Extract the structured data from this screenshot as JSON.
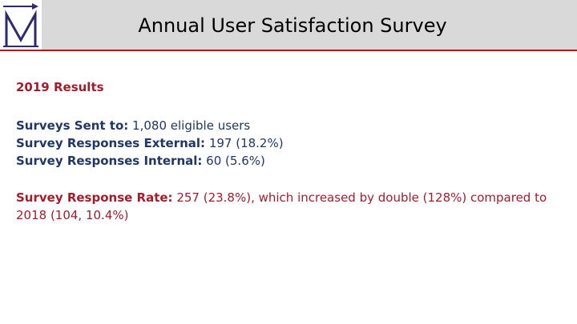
{
  "header": {
    "title": "Annual User Satisfaction Survey",
    "logo_letter": "M"
  },
  "content": {
    "year_heading": "2019 Results",
    "stats": [
      {
        "label": "Surveys Sent to:",
        "value": " 1,080 eligible users"
      },
      {
        "label": "Survey Responses External:",
        "value": " 197 (18.2%)"
      },
      {
        "label": "Survey Responses Internal:",
        "value": " 60 (5.6%)"
      }
    ],
    "rate": {
      "label": "Survey Response Rate:",
      "value": " 257 (23.8%), which increased by double (128%) compared to 2018 (104, 10.4%)"
    }
  },
  "colors": {
    "accent_red": "#a31c2c",
    "text_navy": "#1f3864",
    "header_bg": "#d9d9d9",
    "logo_blue": "#2e2a6e"
  }
}
